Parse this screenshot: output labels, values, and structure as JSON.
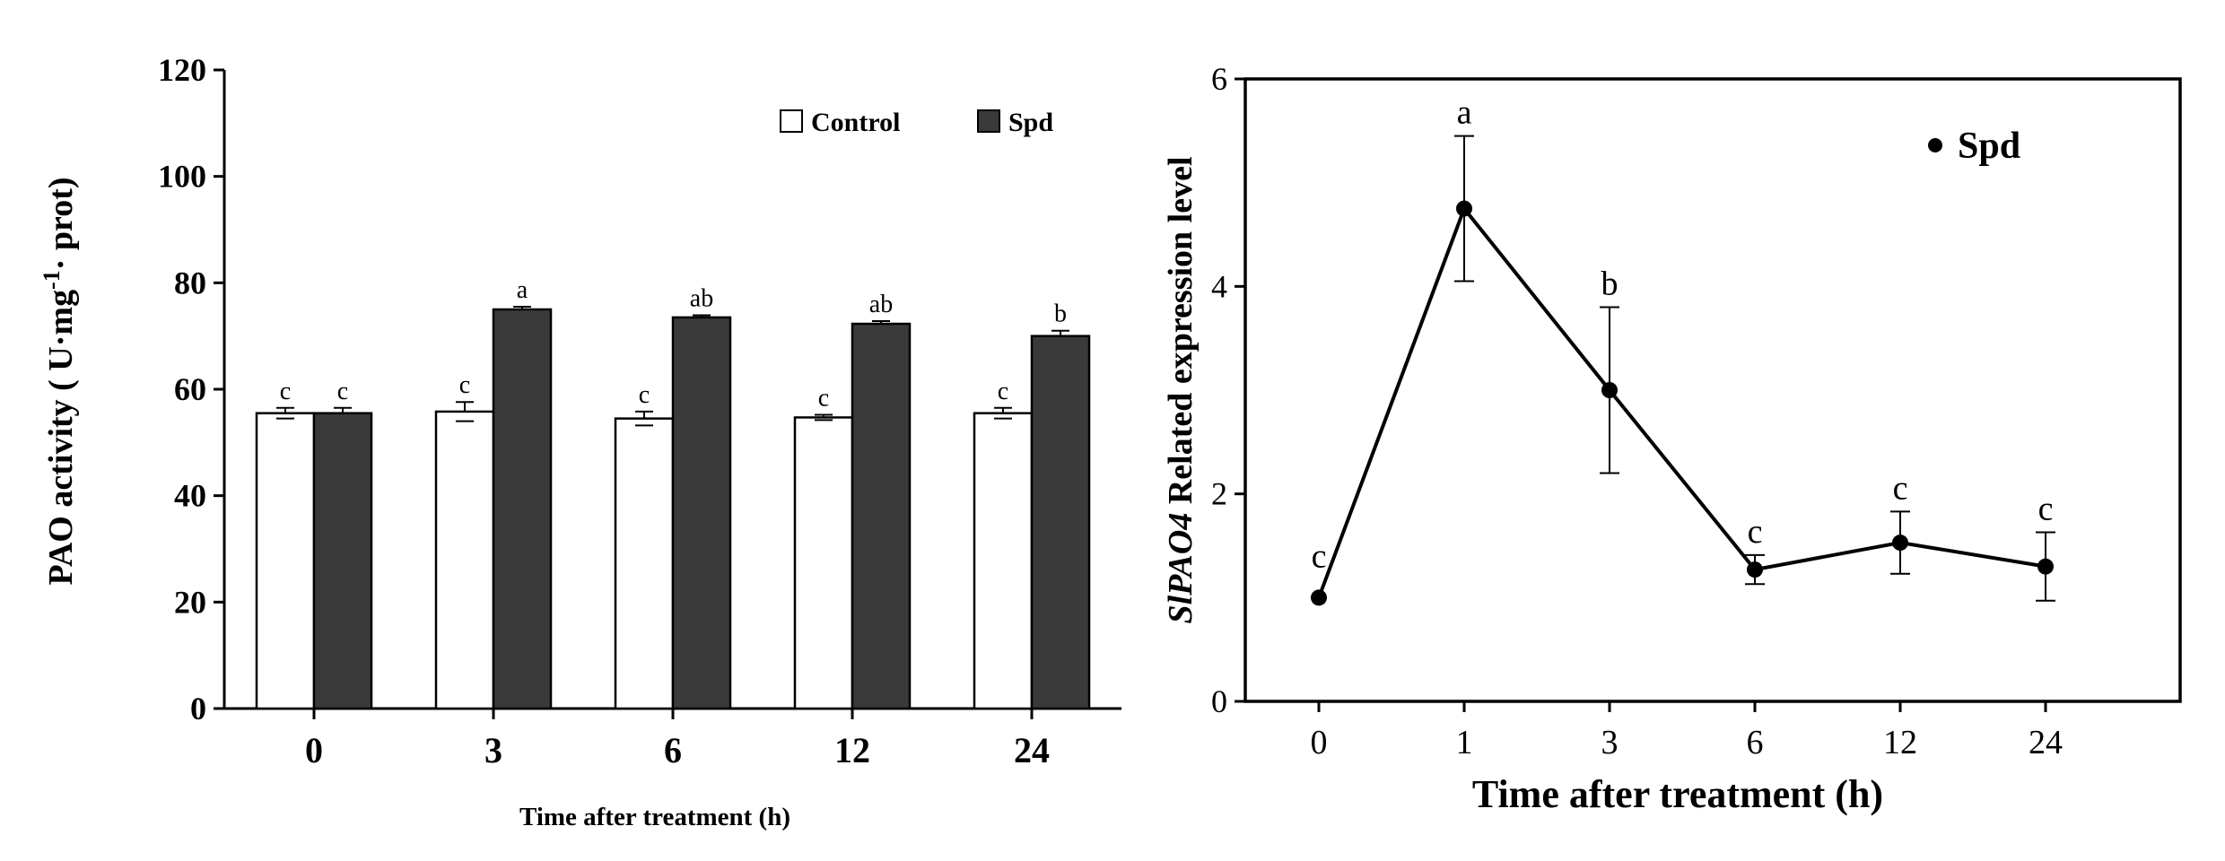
{
  "colors": {
    "control_fill": "#ffffff",
    "spd_fill": "#3a3a3a",
    "line": "#000000",
    "axis": "#000000"
  },
  "chart_data": [
    {
      "type": "bar",
      "title": "",
      "xlabel": "Time after treatment (h)",
      "ylabel_main": "PAO activity ( U·mg",
      "ylabel_sup": "-1",
      "ylabel_tail": "· prot)",
      "categories": [
        "0",
        "3",
        "6",
        "12",
        "24"
      ],
      "ylim": [
        0,
        120
      ],
      "yticks": [
        "0",
        "20",
        "40",
        "60",
        "80",
        "100",
        "120"
      ],
      "series": [
        {
          "name": "Control",
          "values": [
            55.5,
            55.8,
            54.5,
            54.7,
            55.5
          ],
          "errors": [
            1.0,
            1.8,
            1.3,
            0.5,
            1.0
          ],
          "letters": [
            "c",
            "c",
            "c",
            "c",
            "c"
          ]
        },
        {
          "name": "Spd",
          "values": [
            55.5,
            75.0,
            73.5,
            72.3,
            70.0
          ],
          "errors": [
            1.0,
            0.5,
            0.4,
            0.5,
            1.0
          ],
          "letters": [
            "c",
            "a",
            "ab",
            "ab",
            "b"
          ]
        }
      ],
      "legend_position": "top-right"
    },
    {
      "type": "line",
      "title": "",
      "xlabel": "Time after treatment (h)",
      "ylabel_italic": "SlPAO4",
      "ylabel_rest": " Related expression level",
      "x": [
        "0",
        "1",
        "3",
        "6",
        "12",
        "24"
      ],
      "ylim": [
        0,
        6
      ],
      "yticks": [
        "0",
        "2",
        "4",
        "6"
      ],
      "series": [
        {
          "name": "Spd",
          "values": [
            1.0,
            4.75,
            3.0,
            1.27,
            1.53,
            1.3
          ],
          "errors": [
            0.0,
            0.7,
            0.8,
            0.14,
            0.3,
            0.33
          ],
          "letters": [
            "c",
            "a",
            "b",
            "c",
            "c",
            "c"
          ]
        }
      ],
      "legend_position": "top-right"
    }
  ]
}
